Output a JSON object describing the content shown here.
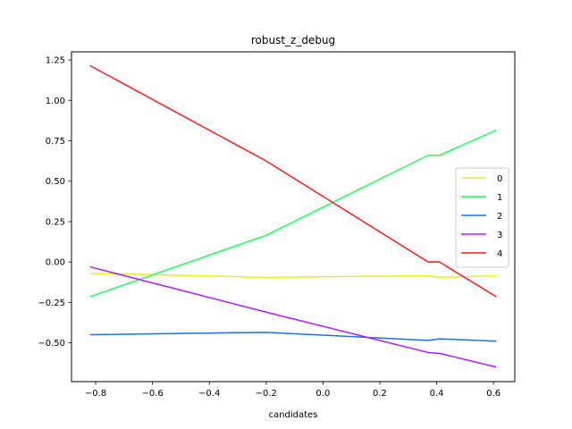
{
  "chart_data": {
    "type": "line",
    "title": "robust_z_debug",
    "xlabel": "candidates",
    "ylabel": "",
    "xlim": [
      -0.885,
      0.675
    ],
    "ylim": [
      -0.74,
      1.3
    ],
    "xticks": [
      -0.8,
      -0.6,
      -0.4,
      -0.2,
      0.0,
      0.2,
      0.4,
      0.6
    ],
    "xtick_labels": [
      "−0.8",
      "−0.6",
      "−0.4",
      "−0.2",
      "0.0",
      "0.2",
      "0.4",
      "0.6"
    ],
    "yticks": [
      -0.5,
      -0.25,
      0.0,
      0.25,
      0.5,
      0.75,
      1.0,
      1.25
    ],
    "ytick_labels": [
      "−0.50",
      "−0.25",
      "0.00",
      "0.25",
      "0.50",
      "0.75",
      "1.00",
      "1.25"
    ],
    "grid": false,
    "legend_position": "center-right",
    "x": [
      -0.82,
      -0.2,
      0.37,
      0.41,
      0.61
    ],
    "series": [
      {
        "name": "0",
        "color": "#e6f01a",
        "values": [
          -0.07,
          -0.095,
          -0.085,
          -0.095,
          -0.085
        ]
      },
      {
        "name": "1",
        "color": "#1aff57",
        "values": [
          -0.215,
          0.165,
          0.66,
          0.66,
          0.815
        ]
      },
      {
        "name": "2",
        "color": "#1a73e6",
        "values": [
          -0.45,
          -0.435,
          -0.485,
          -0.475,
          -0.49
        ]
      },
      {
        "name": "3",
        "color": "#b31aff",
        "values": [
          -0.03,
          -0.31,
          -0.56,
          -0.565,
          -0.65
        ]
      },
      {
        "name": "4",
        "color": "#ff1a1a",
        "values": [
          1.215,
          0.625,
          0.0,
          0.0,
          -0.215
        ]
      }
    ]
  }
}
